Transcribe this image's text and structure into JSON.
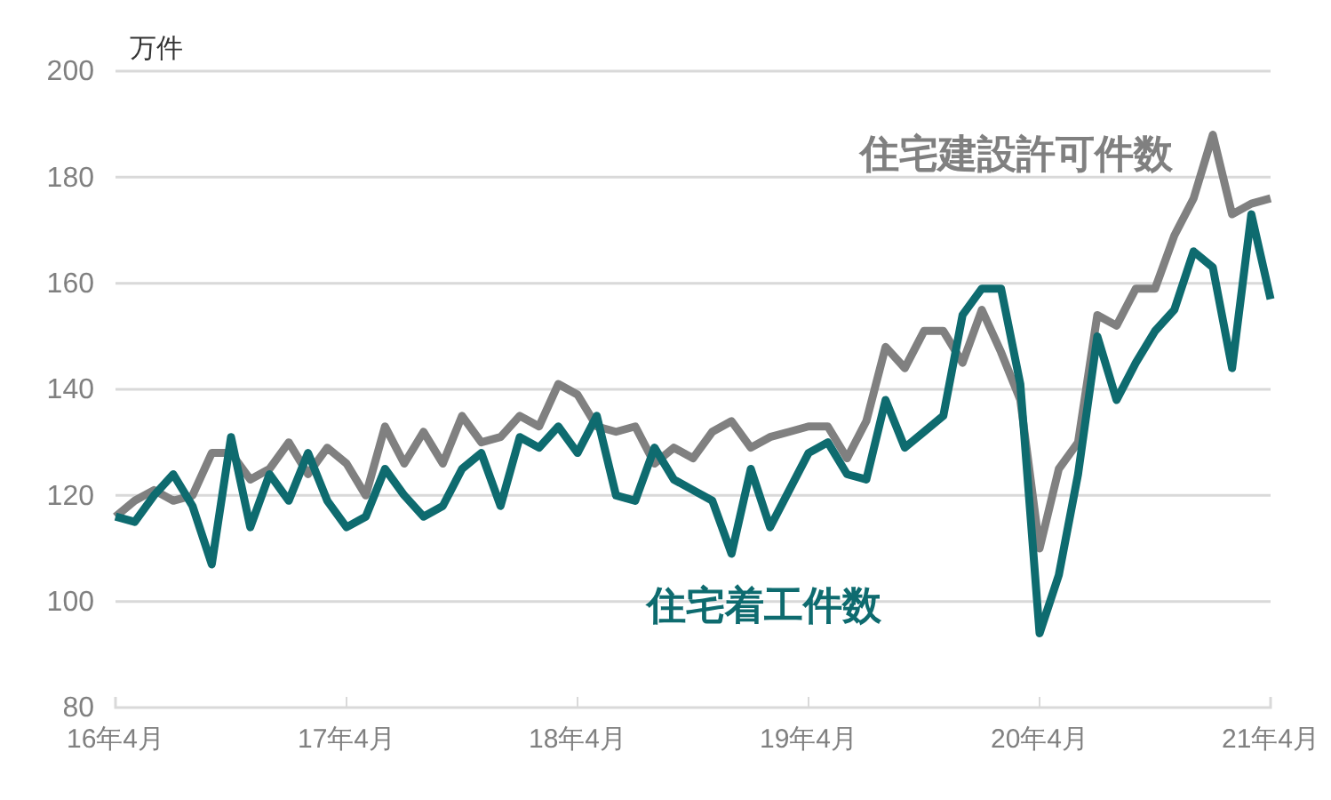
{
  "chart_data": {
    "type": "line",
    "ylabel": "万件",
    "categories": [
      "16年4月",
      null,
      null,
      null,
      null,
      null,
      null,
      null,
      null,
      null,
      null,
      null,
      "17年4月",
      null,
      null,
      null,
      null,
      null,
      null,
      null,
      null,
      null,
      null,
      null,
      "18年4月",
      null,
      null,
      null,
      null,
      null,
      null,
      null,
      null,
      null,
      null,
      null,
      "19年4月",
      null,
      null,
      null,
      null,
      null,
      null,
      null,
      null,
      null,
      null,
      null,
      "20年4月",
      null,
      null,
      null,
      null,
      null,
      null,
      null,
      null,
      null,
      null,
      null,
      "21年4月"
    ],
    "series": [
      {
        "name": "住宅建設許可件数",
        "color": "#808080",
        "values": [
          116,
          119,
          121,
          119,
          120,
          128,
          128,
          123,
          125,
          130,
          124,
          129,
          126,
          120,
          133,
          126,
          132,
          126,
          135,
          130,
          131,
          135,
          133,
          141,
          139,
          133,
          132,
          133,
          126,
          129,
          127,
          132,
          134,
          129,
          131,
          132,
          133,
          133,
          127,
          134,
          148,
          144,
          151,
          151,
          145,
          155,
          147,
          138,
          110,
          125,
          130,
          154,
          152,
          159,
          159,
          169,
          176,
          188,
          173,
          175,
          176
        ]
      },
      {
        "name": "住宅着工件数",
        "color": "#0e6b6f",
        "values": [
          116,
          115,
          120,
          124,
          118,
          107,
          131,
          114,
          124,
          119,
          128,
          119,
          114,
          116,
          125,
          120,
          116,
          118,
          125,
          128,
          118,
          131,
          129,
          133,
          128,
          135,
          120,
          119,
          129,
          123,
          121,
          119,
          109,
          125,
          114,
          121,
          128,
          130,
          124,
          123,
          138,
          129,
          132,
          135,
          154,
          159,
          159,
          141,
          94,
          105,
          124,
          150,
          138,
          145,
          151,
          155,
          166,
          163,
          144,
          173,
          157
        ]
      }
    ],
    "ylim": [
      80,
      200
    ],
    "yticks": [
      80,
      100,
      120,
      140,
      160,
      180,
      200
    ],
    "grid": "y",
    "legend": false,
    "marker": "none",
    "line_style": "solid"
  }
}
